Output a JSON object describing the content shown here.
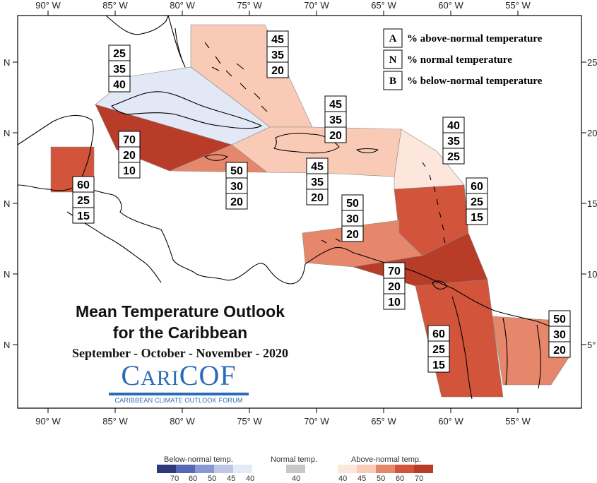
{
  "map": {
    "top_ticks": [
      "90° W",
      "85° W",
      "80° W",
      "75° W",
      "70° W",
      "65° W",
      "60° W",
      "55° W"
    ],
    "bottom_ticks": [
      "90° W",
      "85° W",
      "80° W",
      "75° W",
      "70° W",
      "65° W",
      "60° W",
      "55° W"
    ],
    "left_ticks": [
      "N",
      "N",
      "N",
      "N",
      "N"
    ],
    "right_ticks": [
      "25",
      "20",
      "15",
      "10",
      "5°"
    ]
  },
  "legend": {
    "items": [
      {
        "key": "A",
        "label": "% above-normal temperature"
      },
      {
        "key": "N",
        "label": "% normal temperature"
      },
      {
        "key": "B",
        "label": "% below-normal temperature"
      }
    ]
  },
  "regions": [
    {
      "id": "bahamas",
      "fill": "#f9cbb7",
      "values": [
        "45",
        "35",
        "20"
      ]
    },
    {
      "id": "cuba",
      "fill": "#e3e8f6",
      "values": [
        "25",
        "35",
        "40"
      ]
    },
    {
      "id": "jamaica-cayman",
      "fill": "#b83c28",
      "values": [
        "70",
        "20",
        "10"
      ]
    },
    {
      "id": "belize",
      "fill": "#d2543b",
      "values": [
        "60",
        "25",
        "15"
      ]
    },
    {
      "id": "south-jamaica",
      "fill": "#e6876b",
      "values": [
        "50",
        "30",
        "20"
      ]
    },
    {
      "id": "hispaniola",
      "fill": "#f9cbb7",
      "values": [
        "45",
        "35",
        "20"
      ]
    },
    {
      "id": "hispaniola-south",
      "fill": "#f9cbb7",
      "values": [
        "45",
        "35",
        "20"
      ]
    },
    {
      "id": "leeward",
      "fill": "#fde6db",
      "values": [
        "40",
        "35",
        "25"
      ]
    },
    {
      "id": "windward",
      "fill": "#d2543b",
      "values": [
        "60",
        "25",
        "15"
      ]
    },
    {
      "id": "abc",
      "fill": "#e6876b",
      "values": [
        "50",
        "30",
        "20"
      ]
    },
    {
      "id": "trinidad",
      "fill": "#b83c28",
      "values": [
        "70",
        "20",
        "10"
      ]
    },
    {
      "id": "guyana",
      "fill": "#d2543b",
      "values": [
        "60",
        "25",
        "15"
      ]
    },
    {
      "id": "suriname",
      "fill": "#e6876b",
      "values": [
        "50",
        "30",
        "20"
      ]
    }
  ],
  "title": {
    "line1": "Mean Temperature Outlook",
    "line2": "for the Caribbean",
    "period": "September - October - November - 2020"
  },
  "logo": {
    "name_cap1": "C",
    "name_mid": "ARI",
    "name_cap2": "COF",
    "subtitle": "CARIBBEAN CLIMATE OUTLOOK FORUM"
  },
  "colorbar": {
    "below": {
      "title": "Below-normal temp.",
      "colors": [
        "#2e3a78",
        "#5468b5",
        "#8b97d2",
        "#bfc6e8",
        "#e6e9f6"
      ],
      "labels": [
        "70",
        "60",
        "50",
        "45",
        "40"
      ]
    },
    "normal": {
      "title": "Normal temp.",
      "colors": [
        "#c8c8c8"
      ],
      "labels": [
        "40"
      ]
    },
    "above": {
      "title": "Above-normal temp.",
      "colors": [
        "#fde6db",
        "#f9cbb7",
        "#e6876b",
        "#d2543b",
        "#b83c28"
      ],
      "labels": [
        "40",
        "45",
        "50",
        "60",
        "70"
      ]
    }
  }
}
